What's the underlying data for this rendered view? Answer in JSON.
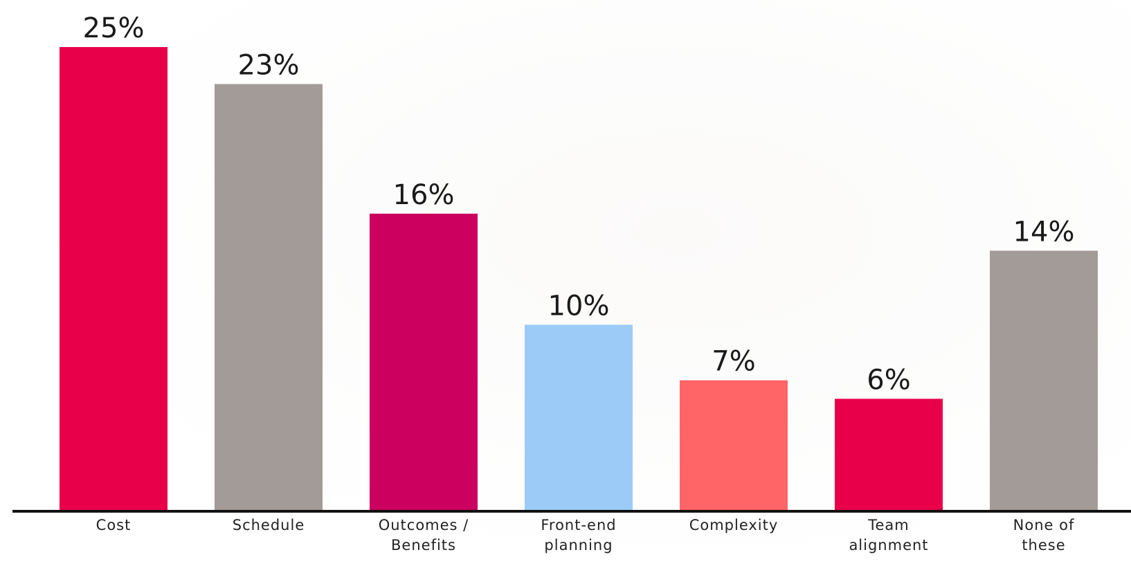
{
  "chart_data": {
    "type": "bar",
    "title": "",
    "xlabel": "",
    "ylabel": "",
    "ylim": [
      0,
      25
    ],
    "grid": false,
    "legend": "none",
    "categories": [
      [
        "Cost"
      ],
      [
        "Schedule"
      ],
      [
        "Outcomes /",
        "Benefits"
      ],
      [
        "Front-end",
        "planning"
      ],
      [
        "Complexity"
      ],
      [
        "Team",
        "alignment"
      ],
      [
        "None of",
        "these"
      ]
    ],
    "values": [
      25,
      23,
      16,
      10,
      7,
      6,
      14
    ],
    "value_labels": [
      "25%",
      "23%",
      "16%",
      "10%",
      "7%",
      "6%",
      "14%"
    ],
    "bar_colors": [
      "#e8004a",
      "#a39b98",
      "#cc005f",
      "#9ccbf8",
      "#ff6466",
      "#e8004a",
      "#a39b98"
    ],
    "axis_color": "#111111"
  }
}
